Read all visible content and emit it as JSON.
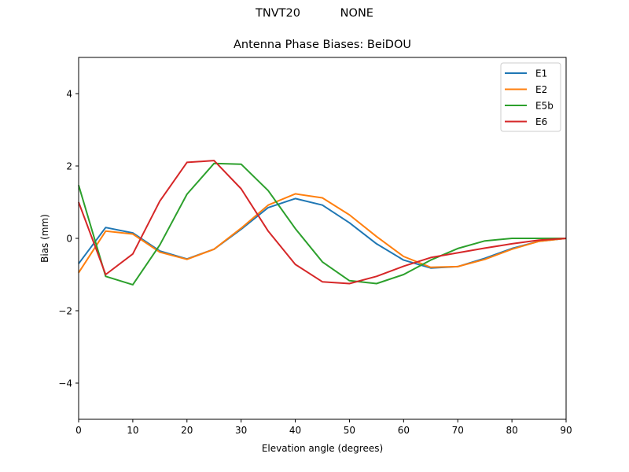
{
  "figure": {
    "suptitle": "TNVT20           NONE"
  },
  "chart_data": {
    "type": "line",
    "title": "Antenna Phase Biases: BeiDOU",
    "xlabel": "Elevation angle (degrees)",
    "ylabel": "Bias (mm)",
    "xlim": [
      0,
      90
    ],
    "ylim": [
      -5,
      5
    ],
    "xticks": [
      0,
      10,
      20,
      30,
      40,
      50,
      60,
      70,
      80,
      90
    ],
    "yticks": [
      -4,
      -2,
      0,
      2,
      4
    ],
    "ytick_labels": [
      "−4",
      "−2",
      "0",
      "2",
      "4"
    ],
    "grid": false,
    "legend_position": "upper right",
    "x": [
      0,
      5,
      10,
      15,
      20,
      25,
      30,
      35,
      40,
      45,
      50,
      55,
      60,
      65,
      70,
      75,
      80,
      85,
      90
    ],
    "series": [
      {
        "name": "E1",
        "color": "#1f77b4",
        "values": [
          -0.7,
          0.3,
          0.15,
          -0.35,
          -0.57,
          -0.3,
          0.25,
          0.85,
          1.1,
          0.92,
          0.43,
          -0.15,
          -0.6,
          -0.82,
          -0.78,
          -0.55,
          -0.28,
          -0.08,
          0.0
        ]
      },
      {
        "name": "E2",
        "color": "#ff7f0e",
        "values": [
          -0.95,
          0.2,
          0.12,
          -0.38,
          -0.58,
          -0.3,
          0.28,
          0.92,
          1.23,
          1.12,
          0.65,
          0.05,
          -0.5,
          -0.8,
          -0.78,
          -0.58,
          -0.3,
          -0.08,
          0.0
        ]
      },
      {
        "name": "E5b",
        "color": "#2ca02c",
        "values": [
          1.47,
          -1.05,
          -1.28,
          -0.18,
          1.22,
          2.07,
          2.05,
          1.32,
          0.27,
          -0.65,
          -1.17,
          -1.25,
          -1.0,
          -0.6,
          -0.28,
          -0.07,
          0.0,
          0.0,
          0.0
        ]
      },
      {
        "name": "E6",
        "color": "#d62728",
        "values": [
          1.0,
          -1.0,
          -0.43,
          1.03,
          2.1,
          2.15,
          1.37,
          0.2,
          -0.72,
          -1.2,
          -1.25,
          -1.05,
          -0.77,
          -0.53,
          -0.4,
          -0.27,
          -0.15,
          -0.05,
          0.0
        ]
      }
    ]
  }
}
